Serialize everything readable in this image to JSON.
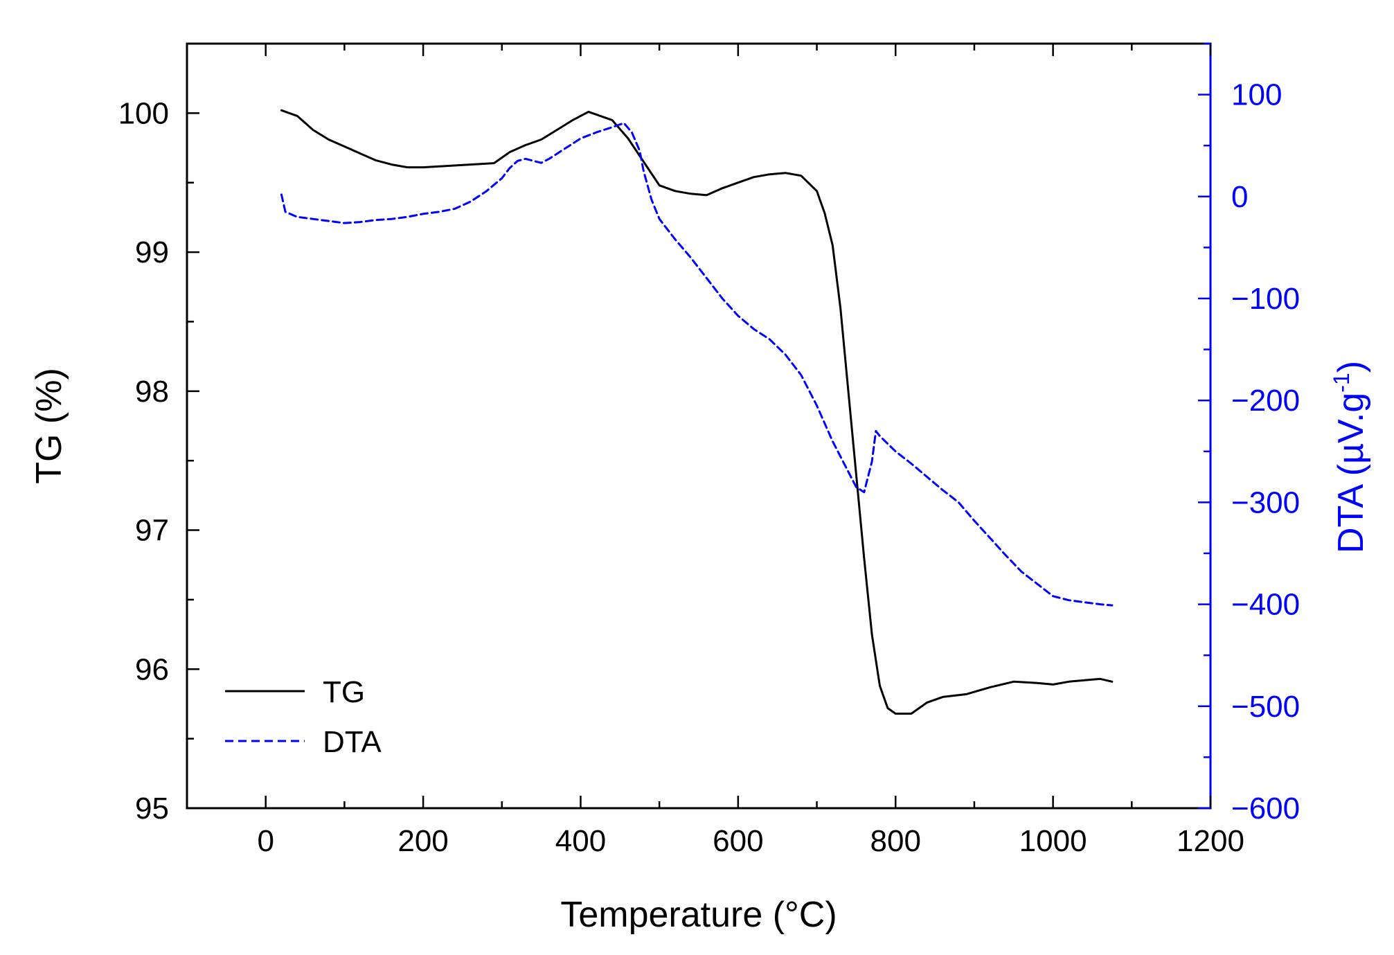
{
  "chart_data": {
    "type": "line",
    "title": "",
    "xlabel": "Temperature (°C)",
    "ylabel": "TG (%)",
    "y2label_main": "DTA (",
    "y2label_unit": "µV.g",
    "y2label_sup": "-1",
    "y2label_close": ")",
    "xlim": [
      -100,
      1200
    ],
    "ylim": [
      95,
      100.5
    ],
    "y2lim": [
      -600,
      150
    ],
    "xticks": [
      "0",
      "200",
      "400",
      "600",
      "800",
      "1000",
      "1200"
    ],
    "yticks": [
      "95",
      "96",
      "97",
      "98",
      "99",
      "100"
    ],
    "y2ticks": [
      "100",
      "0",
      "-100",
      "-200",
      "-300",
      "-400",
      "-500",
      "-600"
    ],
    "grid": false,
    "legend_position": "bottom-left",
    "colors": {
      "tg": "#000000",
      "dta": "#0000ff"
    },
    "series": [
      {
        "name": "TG",
        "axis": "left",
        "style": "solid",
        "x": [
          20,
          40,
          60,
          80,
          100,
          120,
          140,
          160,
          180,
          200,
          230,
          260,
          290,
          310,
          330,
          350,
          370,
          390,
          400,
          410,
          420,
          440,
          460,
          480,
          500,
          520,
          540,
          560,
          580,
          600,
          620,
          640,
          660,
          680,
          700,
          710,
          720,
          730,
          740,
          750,
          760,
          770,
          780,
          790,
          800,
          820,
          840,
          860,
          890,
          920,
          950,
          980,
          1000,
          1020,
          1040,
          1060,
          1075
        ],
        "values": [
          100.02,
          99.98,
          99.88,
          99.81,
          99.76,
          99.71,
          99.66,
          99.63,
          99.61,
          99.61,
          99.62,
          99.63,
          99.64,
          99.72,
          99.77,
          99.81,
          99.88,
          99.95,
          99.98,
          100.01,
          99.99,
          99.95,
          99.82,
          99.65,
          99.48,
          99.44,
          99.42,
          99.41,
          99.46,
          99.5,
          99.54,
          99.56,
          99.57,
          99.55,
          99.44,
          99.28,
          99.05,
          98.6,
          98.0,
          97.4,
          96.8,
          96.25,
          95.88,
          95.72,
          95.68,
          95.68,
          95.76,
          95.8,
          95.82,
          95.87,
          95.91,
          95.9,
          95.89,
          95.91,
          95.92,
          95.93,
          95.91
        ]
      },
      {
        "name": "DTA",
        "axis": "right",
        "style": "dashed",
        "x": [
          20,
          25,
          40,
          60,
          80,
          100,
          120,
          140,
          160,
          180,
          200,
          220,
          240,
          260,
          280,
          300,
          310,
          320,
          330,
          340,
          350,
          360,
          380,
          400,
          420,
          440,
          455,
          465,
          475,
          480,
          490,
          500,
          520,
          540,
          560,
          580,
          600,
          620,
          640,
          660,
          680,
          700,
          720,
          740,
          750,
          760,
          770,
          775,
          780,
          800,
          820,
          840,
          860,
          880,
          900,
          920,
          940,
          960,
          980,
          1000,
          1020,
          1040,
          1060,
          1075
        ],
        "values": [
          2,
          -15,
          -20,
          -22,
          -24,
          -26,
          -25,
          -23,
          -22,
          -20,
          -17,
          -15,
          -12,
          -5,
          5,
          18,
          28,
          35,
          37,
          35,
          33,
          37,
          47,
          57,
          63,
          68,
          72,
          63,
          45,
          25,
          -3,
          -22,
          -42,
          -60,
          -80,
          -100,
          -117,
          -130,
          -140,
          -155,
          -175,
          -205,
          -240,
          -270,
          -285,
          -290,
          -260,
          -230,
          -235,
          -250,
          -262,
          -275,
          -288,
          -300,
          -318,
          -335,
          -352,
          -368,
          -380,
          -392,
          -396,
          -398,
          -400,
          -401
        ]
      }
    ]
  }
}
